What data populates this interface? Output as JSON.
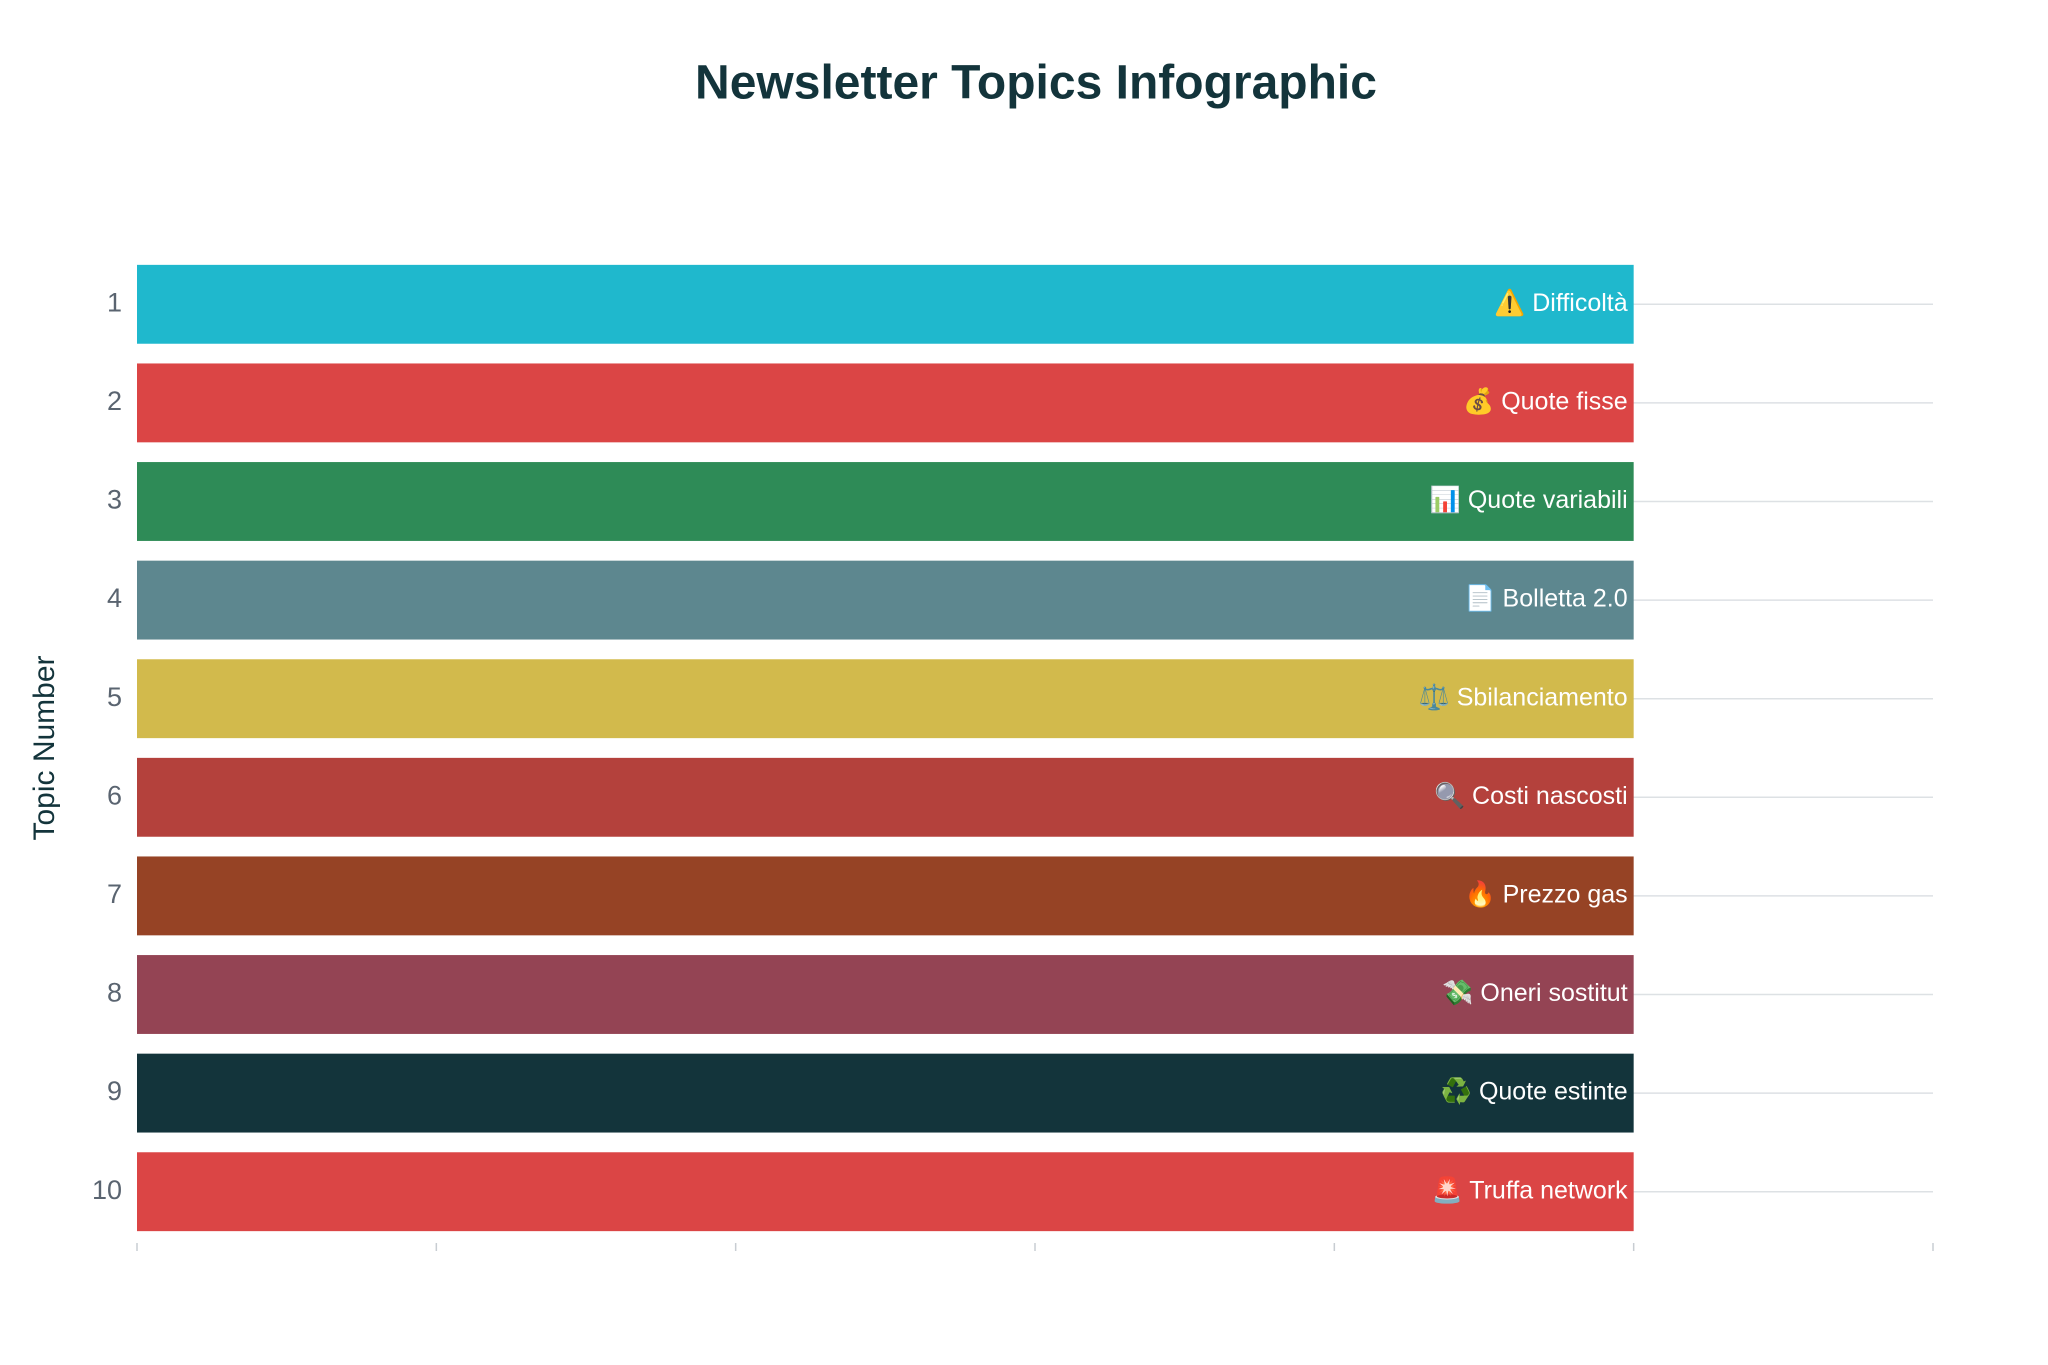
{
  "chart_data": {
    "type": "bar",
    "orientation": "horizontal",
    "title": "Newsletter Topics Infographic",
    "y_axis_label": "Topic Number",
    "categories": [
      "1",
      "2",
      "3",
      "4",
      "5",
      "6",
      "7",
      "8",
      "9",
      "10"
    ],
    "values": [
      1,
      1,
      1,
      1,
      1,
      1,
      1,
      1,
      1,
      1
    ],
    "labels": [
      "⚠️ Difficoltà",
      "💰 Quote fisse",
      "📊 Quote variabili",
      "📄 Bolletta 2.0",
      "⚖️ Sbilanciamento",
      "🔍 Costi nascosti",
      "🔥 Prezzo gas",
      "💸 Oneri sostitut",
      "♻️ Quote estinte",
      "🚨 Truffa network"
    ],
    "colors": [
      "#1FB8CD",
      "#DB4545",
      "#2E8B57",
      "#5D878F",
      "#D2BA4C",
      "#B4413C",
      "#964325",
      "#944454",
      "#13343B",
      "#DB4545"
    ],
    "xlim": [
      0,
      1.2
    ],
    "xticks": [
      0,
      0.2,
      0.4,
      0.6,
      0.8,
      1,
      1.2
    ],
    "grid": true
  }
}
